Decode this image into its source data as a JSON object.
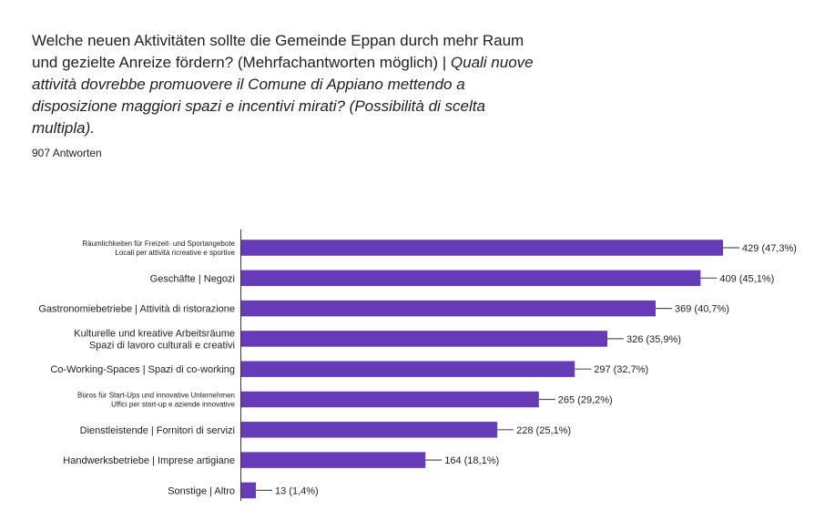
{
  "question": {
    "german": "Welche neuen Aktivitäten sollte die Gemeinde Eppan durch mehr Raum und gezielte Anreize fördern? (Mehrfachantworten möglich) | ",
    "italian": "Quali nuove attività dovrebbe promuovere il Comune di Appiano mettendo a disposizione maggiori spazi e incentivi mirati? (Possibilità di scelta multipla)."
  },
  "response_count": "907 Antworten",
  "colors": {
    "bar": "#673ab7",
    "axis": "#333333",
    "leader": "#555555"
  },
  "chart_data": {
    "type": "bar",
    "orientation": "horizontal",
    "title": "",
    "xlabel": "",
    "ylabel": "",
    "categories": [
      [
        "Räumlichkeiten für Freizeit- und Sportangebote",
        "Locali per attività ricreative e sportive"
      ],
      [
        "Geschäfte | Negozi"
      ],
      [
        "Gastronomiebetriebe | Attività di ristorazione"
      ],
      [
        "Kulturelle und kreative Arbeitsräume",
        "Spazi di lavoro culturali e creativi"
      ],
      [
        "Co-Working-Spaces | Spazi di co-working"
      ],
      [
        "Büros für Start-Ups und innovative Unternehmen",
        "Uffici per start-up e aziende innovative"
      ],
      [
        "Dienstleistende | Fornitori di servizi"
      ],
      [
        "Handwerksbetriebe | Imprese artigiane"
      ],
      [
        "Sonstige | Altro"
      ]
    ],
    "values": [
      429,
      409,
      369,
      326,
      297,
      265,
      228,
      164,
      13
    ],
    "value_labels": [
      "429 (47,3%)",
      "409 (45,1%)",
      "369 (40,7%)",
      "326 (35,9%)",
      "297 (32,7%)",
      "265 (29,2%)",
      "228 (25,1%)",
      "164 (18,1%)",
      "13 (1,4%)"
    ],
    "xlim": [
      0,
      429
    ],
    "grid": false,
    "legend": "none"
  }
}
